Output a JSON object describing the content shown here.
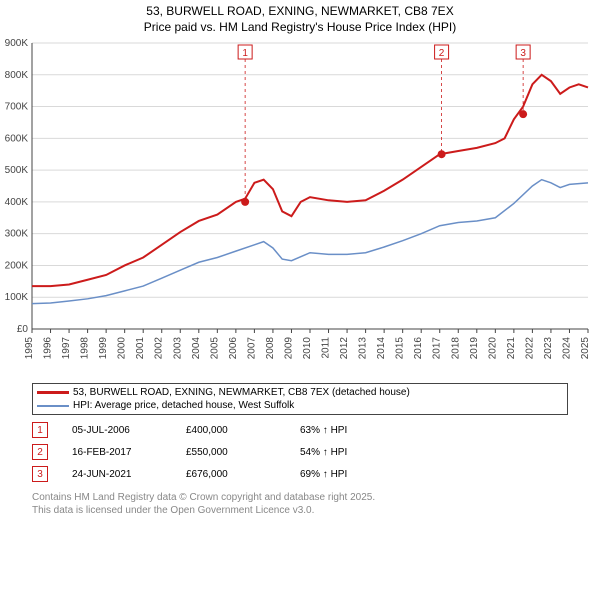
{
  "title_line1": "53, BURWELL ROAD, EXNING, NEWMARKET, CB8 7EX",
  "title_line2": "Price paid vs. HM Land Registry's House Price Index (HPI)",
  "chart": {
    "type": "line",
    "background_color": "#ffffff",
    "grid_color": "#d9d9d9",
    "axis_color": "#444444",
    "tick_fontsize": 10,
    "ylim": [
      0,
      900
    ],
    "yticks": [
      0,
      100,
      200,
      300,
      400,
      500,
      600,
      700,
      800,
      900
    ],
    "ytick_labels": [
      "£0",
      "100K",
      "200K",
      "300K",
      "400K",
      "500K",
      "600K",
      "700K",
      "800K",
      "900K"
    ],
    "xlim": [
      1995,
      2025
    ],
    "xticks": [
      1995,
      1996,
      1997,
      1998,
      1999,
      2000,
      2001,
      2002,
      2003,
      2004,
      2005,
      2006,
      2007,
      2008,
      2009,
      2010,
      2011,
      2012,
      2013,
      2014,
      2015,
      2016,
      2017,
      2018,
      2019,
      2020,
      2021,
      2022,
      2023,
      2024,
      2025
    ],
    "series": [
      {
        "name": "53, BURWELL ROAD, EXNING, NEWMARKET, CB8 7EX (detached house)",
        "color": "#cc1b1b",
        "line_width": 2,
        "data": [
          [
            1995,
            135
          ],
          [
            1996,
            135
          ],
          [
            1997,
            140
          ],
          [
            1998,
            155
          ],
          [
            1999,
            170
          ],
          [
            2000,
            200
          ],
          [
            2001,
            225
          ],
          [
            2002,
            265
          ],
          [
            2003,
            305
          ],
          [
            2004,
            340
          ],
          [
            2005,
            360
          ],
          [
            2006,
            400
          ],
          [
            2006.5,
            410
          ],
          [
            2007,
            460
          ],
          [
            2007.5,
            470
          ],
          [
            2008,
            440
          ],
          [
            2008.5,
            370
          ],
          [
            2009,
            355
          ],
          [
            2009.5,
            400
          ],
          [
            2010,
            415
          ],
          [
            2011,
            405
          ],
          [
            2012,
            400
          ],
          [
            2013,
            405
          ],
          [
            2014,
            435
          ],
          [
            2015,
            470
          ],
          [
            2016,
            510
          ],
          [
            2017,
            550
          ],
          [
            2018,
            560
          ],
          [
            2019,
            570
          ],
          [
            2020,
            585
          ],
          [
            2020.5,
            600
          ],
          [
            2021,
            660
          ],
          [
            2021.5,
            700
          ],
          [
            2022,
            770
          ],
          [
            2022.5,
            800
          ],
          [
            2023,
            780
          ],
          [
            2023.5,
            740
          ],
          [
            2024,
            760
          ],
          [
            2024.5,
            770
          ],
          [
            2025,
            760
          ]
        ]
      },
      {
        "name": "HPI: Average price, detached house, West Suffolk",
        "color": "#6a8fc7",
        "line_width": 1.5,
        "data": [
          [
            1995,
            80
          ],
          [
            1996,
            82
          ],
          [
            1997,
            88
          ],
          [
            1998,
            95
          ],
          [
            1999,
            105
          ],
          [
            2000,
            120
          ],
          [
            2001,
            135
          ],
          [
            2002,
            160
          ],
          [
            2003,
            185
          ],
          [
            2004,
            210
          ],
          [
            2005,
            225
          ],
          [
            2006,
            245
          ],
          [
            2007,
            265
          ],
          [
            2007.5,
            275
          ],
          [
            2008,
            255
          ],
          [
            2008.5,
            220
          ],
          [
            2009,
            215
          ],
          [
            2010,
            240
          ],
          [
            2011,
            235
          ],
          [
            2012,
            235
          ],
          [
            2013,
            240
          ],
          [
            2014,
            258
          ],
          [
            2015,
            278
          ],
          [
            2016,
            300
          ],
          [
            2017,
            325
          ],
          [
            2018,
            335
          ],
          [
            2019,
            340
          ],
          [
            2020,
            350
          ],
          [
            2021,
            395
          ],
          [
            2022,
            450
          ],
          [
            2022.5,
            470
          ],
          [
            2023,
            460
          ],
          [
            2023.5,
            445
          ],
          [
            2024,
            455
          ],
          [
            2025,
            460
          ]
        ]
      }
    ],
    "markers": [
      {
        "label": "1",
        "x": 2006.5,
        "y": 400,
        "color": "#cc1b1b"
      },
      {
        "label": "2",
        "x": 2017.1,
        "y": 550,
        "color": "#cc1b1b"
      },
      {
        "label": "3",
        "x": 2021.5,
        "y": 676,
        "color": "#cc1b1b"
      }
    ]
  },
  "legend": {
    "items": [
      {
        "label": "53, BURWELL ROAD, EXNING, NEWMARKET, CB8 7EX (detached house)",
        "color": "#cc1b1b"
      },
      {
        "label": "HPI: Average price, detached house, West Suffolk",
        "color": "#6a8fc7"
      }
    ]
  },
  "table": {
    "rows": [
      {
        "badge": "1",
        "date": "05-JUL-2006",
        "price": "£400,000",
        "pct": "63% ↑ HPI"
      },
      {
        "badge": "2",
        "date": "16-FEB-2017",
        "price": "£550,000",
        "pct": "54% ↑ HPI"
      },
      {
        "badge": "3",
        "date": "24-JUN-2021",
        "price": "£676,000",
        "pct": "69% ↑ HPI"
      }
    ]
  },
  "footer_line1": "Contains HM Land Registry data © Crown copyright and database right 2025.",
  "footer_line2": "This data is licensed under the Open Government Licence v3.0."
}
